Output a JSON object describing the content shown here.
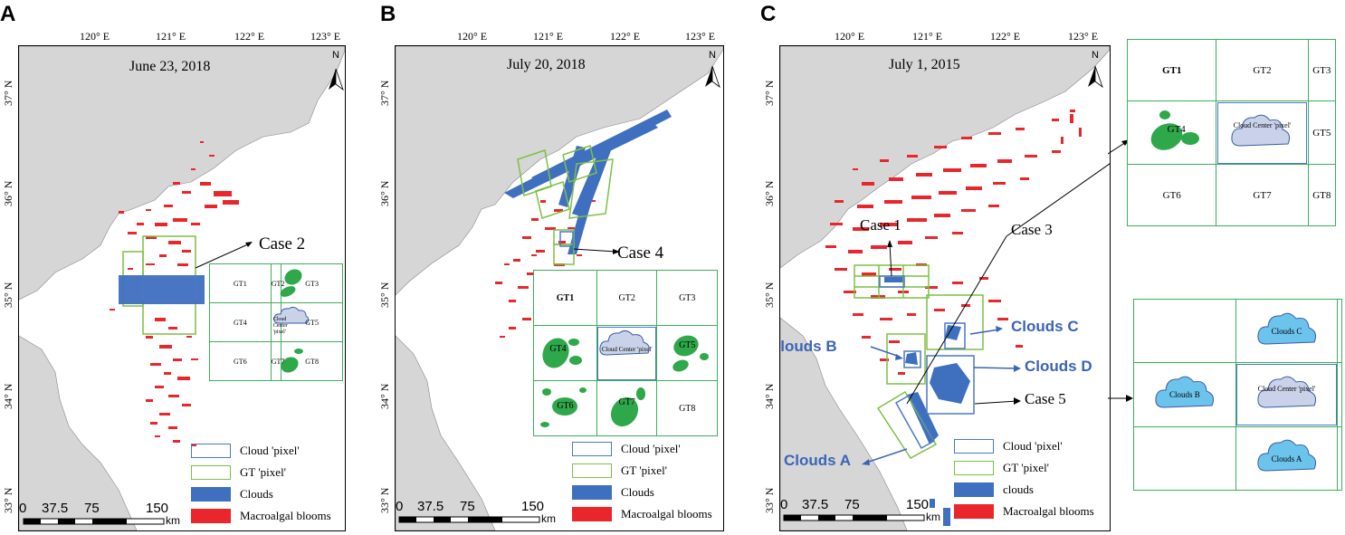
{
  "panels": [
    {
      "letter": "A",
      "date": "June 23, 2018",
      "lon_ticks": [
        "120° E",
        "121° E",
        "122° E",
        "123° E"
      ],
      "lat_ticks": [
        "37° N",
        "36° N",
        "35° N",
        "34° N",
        "33° N"
      ],
      "north": "N",
      "case_label": "Case 2",
      "grid": [
        "GT1",
        "GT2",
        "GT3",
        "GT4",
        "Cloud Center 'pixel'",
        "GT5",
        "GT6",
        "GT7",
        "GT8"
      ],
      "legend": [
        "Cloud 'pixel'",
        "GT 'pixel'",
        "Clouds",
        "Macroalgal blooms"
      ],
      "scale": {
        "labels": [
          "0",
          "37.5",
          "75",
          "150"
        ],
        "unit": "km"
      }
    },
    {
      "letter": "B",
      "date": "July 20, 2018",
      "lon_ticks": [
        "120° E",
        "121° E",
        "122° E",
        "123° E"
      ],
      "lat_ticks": [
        "37° N",
        "36° N",
        "35° N",
        "34° N",
        "33° N"
      ],
      "north": "N",
      "case_label": "Case 4",
      "grid": [
        "GT1",
        "GT2",
        "GT3",
        "GT4",
        "Cloud Center 'pixel'",
        "GT5",
        "GT6",
        "GT7",
        "GT8"
      ],
      "legend": [
        "Cloud 'pixel'",
        "GT 'pixel'",
        "Clouds",
        "Macroalgal blooms"
      ],
      "scale": {
        "labels": [
          "0",
          "37.5",
          "75",
          "150"
        ],
        "unit": "km"
      }
    },
    {
      "letter": "C",
      "date": "July 1, 2015",
      "lon_ticks": [
        "120° E",
        "121° E",
        "122° E",
        "123° E"
      ],
      "lat_ticks": [
        "37° N",
        "36° N",
        "35° N",
        "34° N",
        "33° N"
      ],
      "north": "N",
      "case1": "Case 1",
      "case3": "Case 3",
      "case5": "Case 5",
      "clouds": [
        "Clouds A",
        "Clouds B",
        "Clouds C",
        "Clouds D"
      ],
      "grid_top": [
        "GT1",
        "GT2",
        "GT3",
        "GT4",
        "Cloud Center 'pixel'",
        "GT5",
        "GT6",
        "GT7",
        "GT8"
      ],
      "grid_bottom": [
        "Clouds C",
        "Clouds B",
        "Cloud Center 'pixel'",
        "Clouds A"
      ],
      "legend": [
        "Cloud 'pixel'",
        "GT 'pixel'",
        "clouds",
        "Macroalgal blooms"
      ],
      "scale": {
        "labels": [
          "0",
          "37.5",
          "75",
          "150"
        ],
        "unit": "km"
      }
    }
  ],
  "colors": {
    "land": "#d6d6d6",
    "cloud": "#3f6fbf",
    "bloom": "#e8262b",
    "gt": "#7cc142",
    "cloudbox": "#4a79c8",
    "gridline": "#3cae5c",
    "blob": "#2ea84a"
  }
}
